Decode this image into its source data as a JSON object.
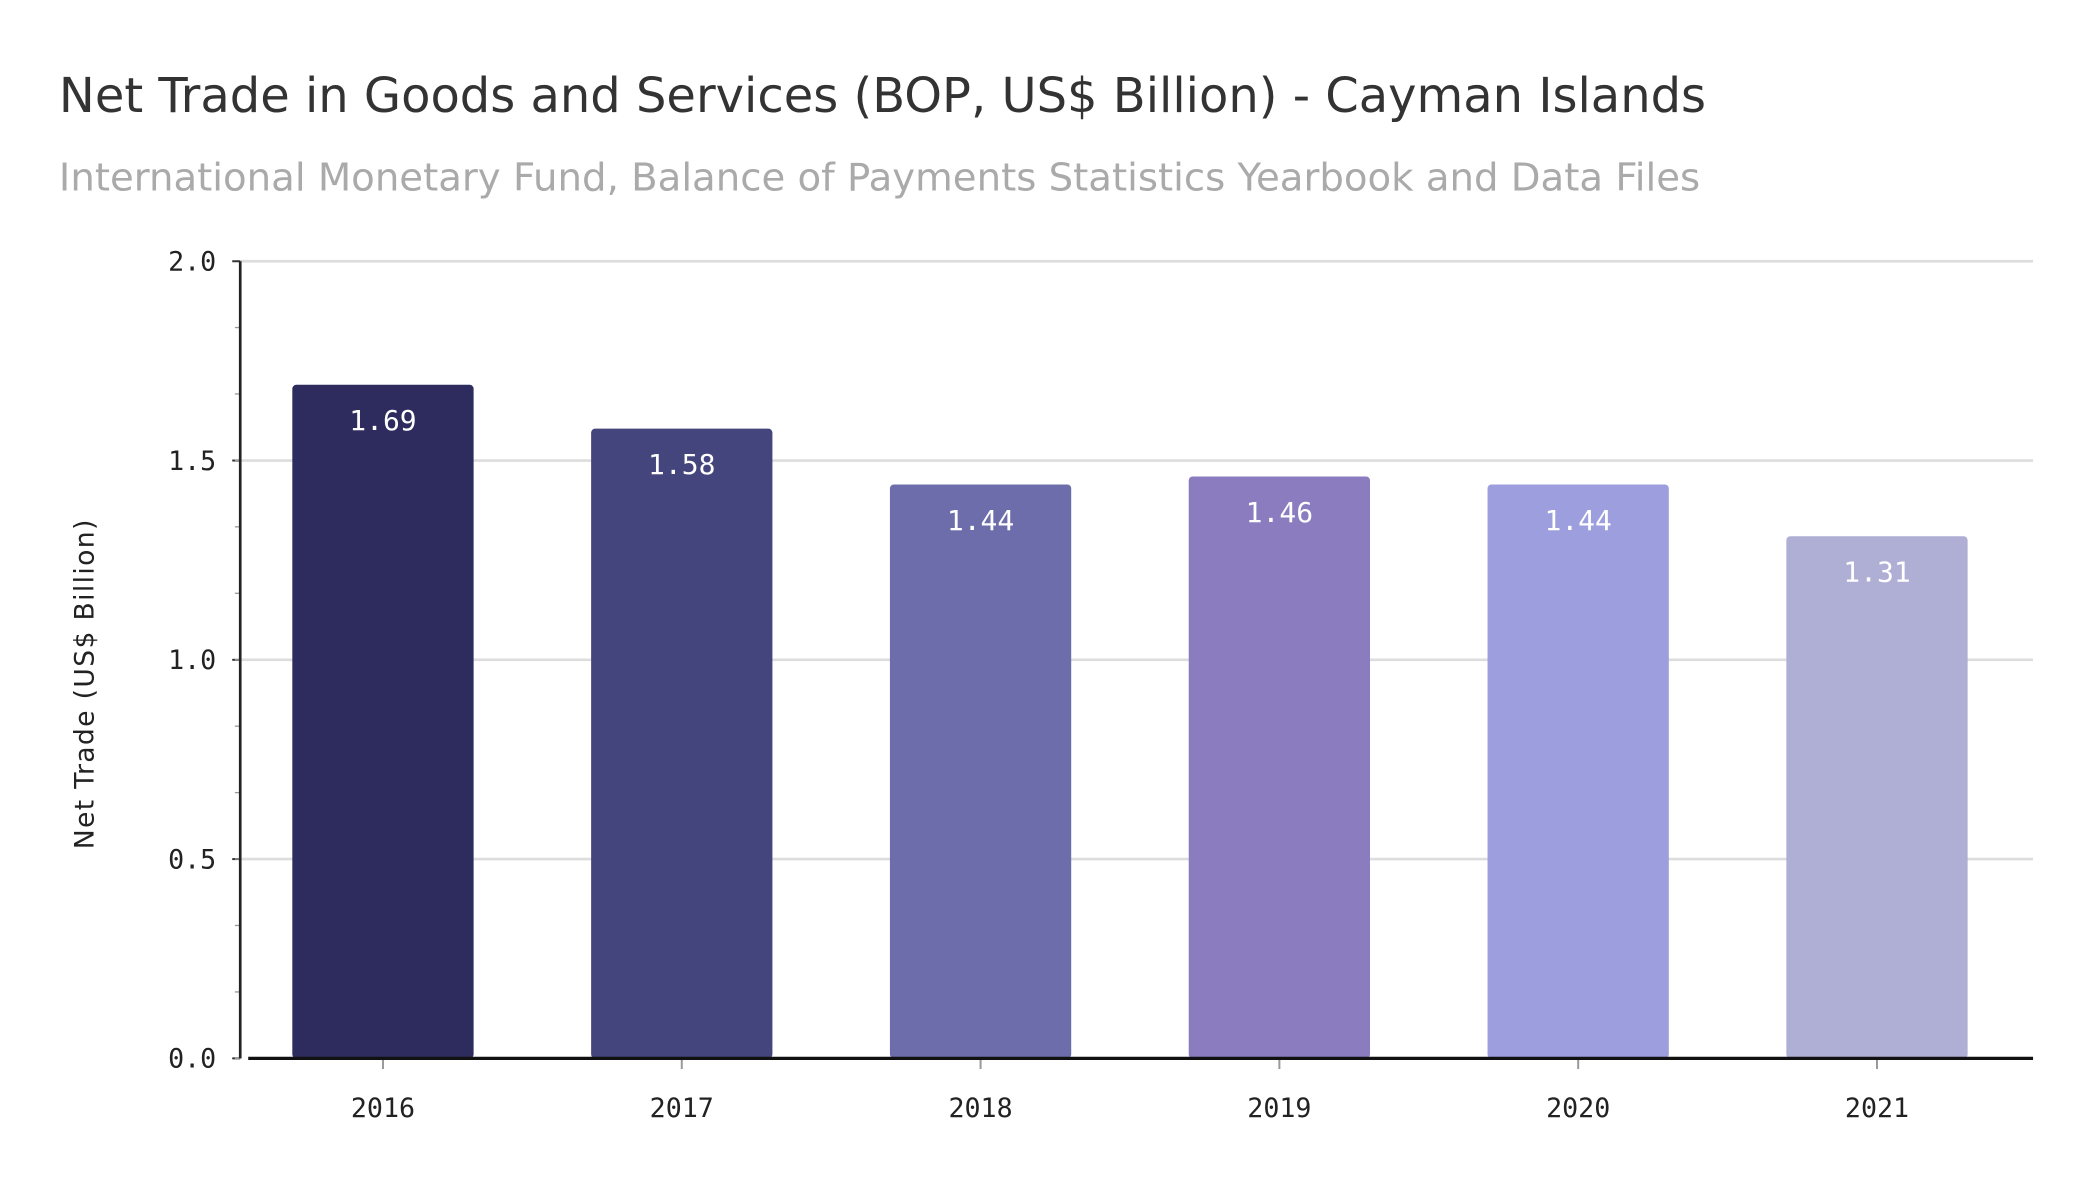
{
  "chart_data": {
    "type": "bar",
    "title": "Net Trade in Goods and Services (BOP, US$ Billion) - Cayman Islands",
    "subtitle": "International Monetary Fund, Balance of Payments Statistics Yearbook and Data Files",
    "xlabel": "",
    "ylabel": "Net Trade (US$ Billion)",
    "categories": [
      "2016",
      "2017",
      "2018",
      "2019",
      "2020",
      "2021"
    ],
    "values": [
      1.69,
      1.58,
      1.44,
      1.46,
      1.44,
      1.31
    ],
    "value_labels": [
      "1.69",
      "1.58",
      "1.44",
      "1.46",
      "1.44",
      "1.31"
    ],
    "colors": [
      "#2e2c5e",
      "#43457c",
      "#6d6dab",
      "#8b7cbf",
      "#9d9ede",
      "#afaed4"
    ],
    "ylim": [
      0,
      2.0
    ],
    "yticks": [
      "0.0",
      "0.5",
      "1.0",
      "1.5",
      "2.0"
    ],
    "grid": true,
    "legend": "none"
  }
}
